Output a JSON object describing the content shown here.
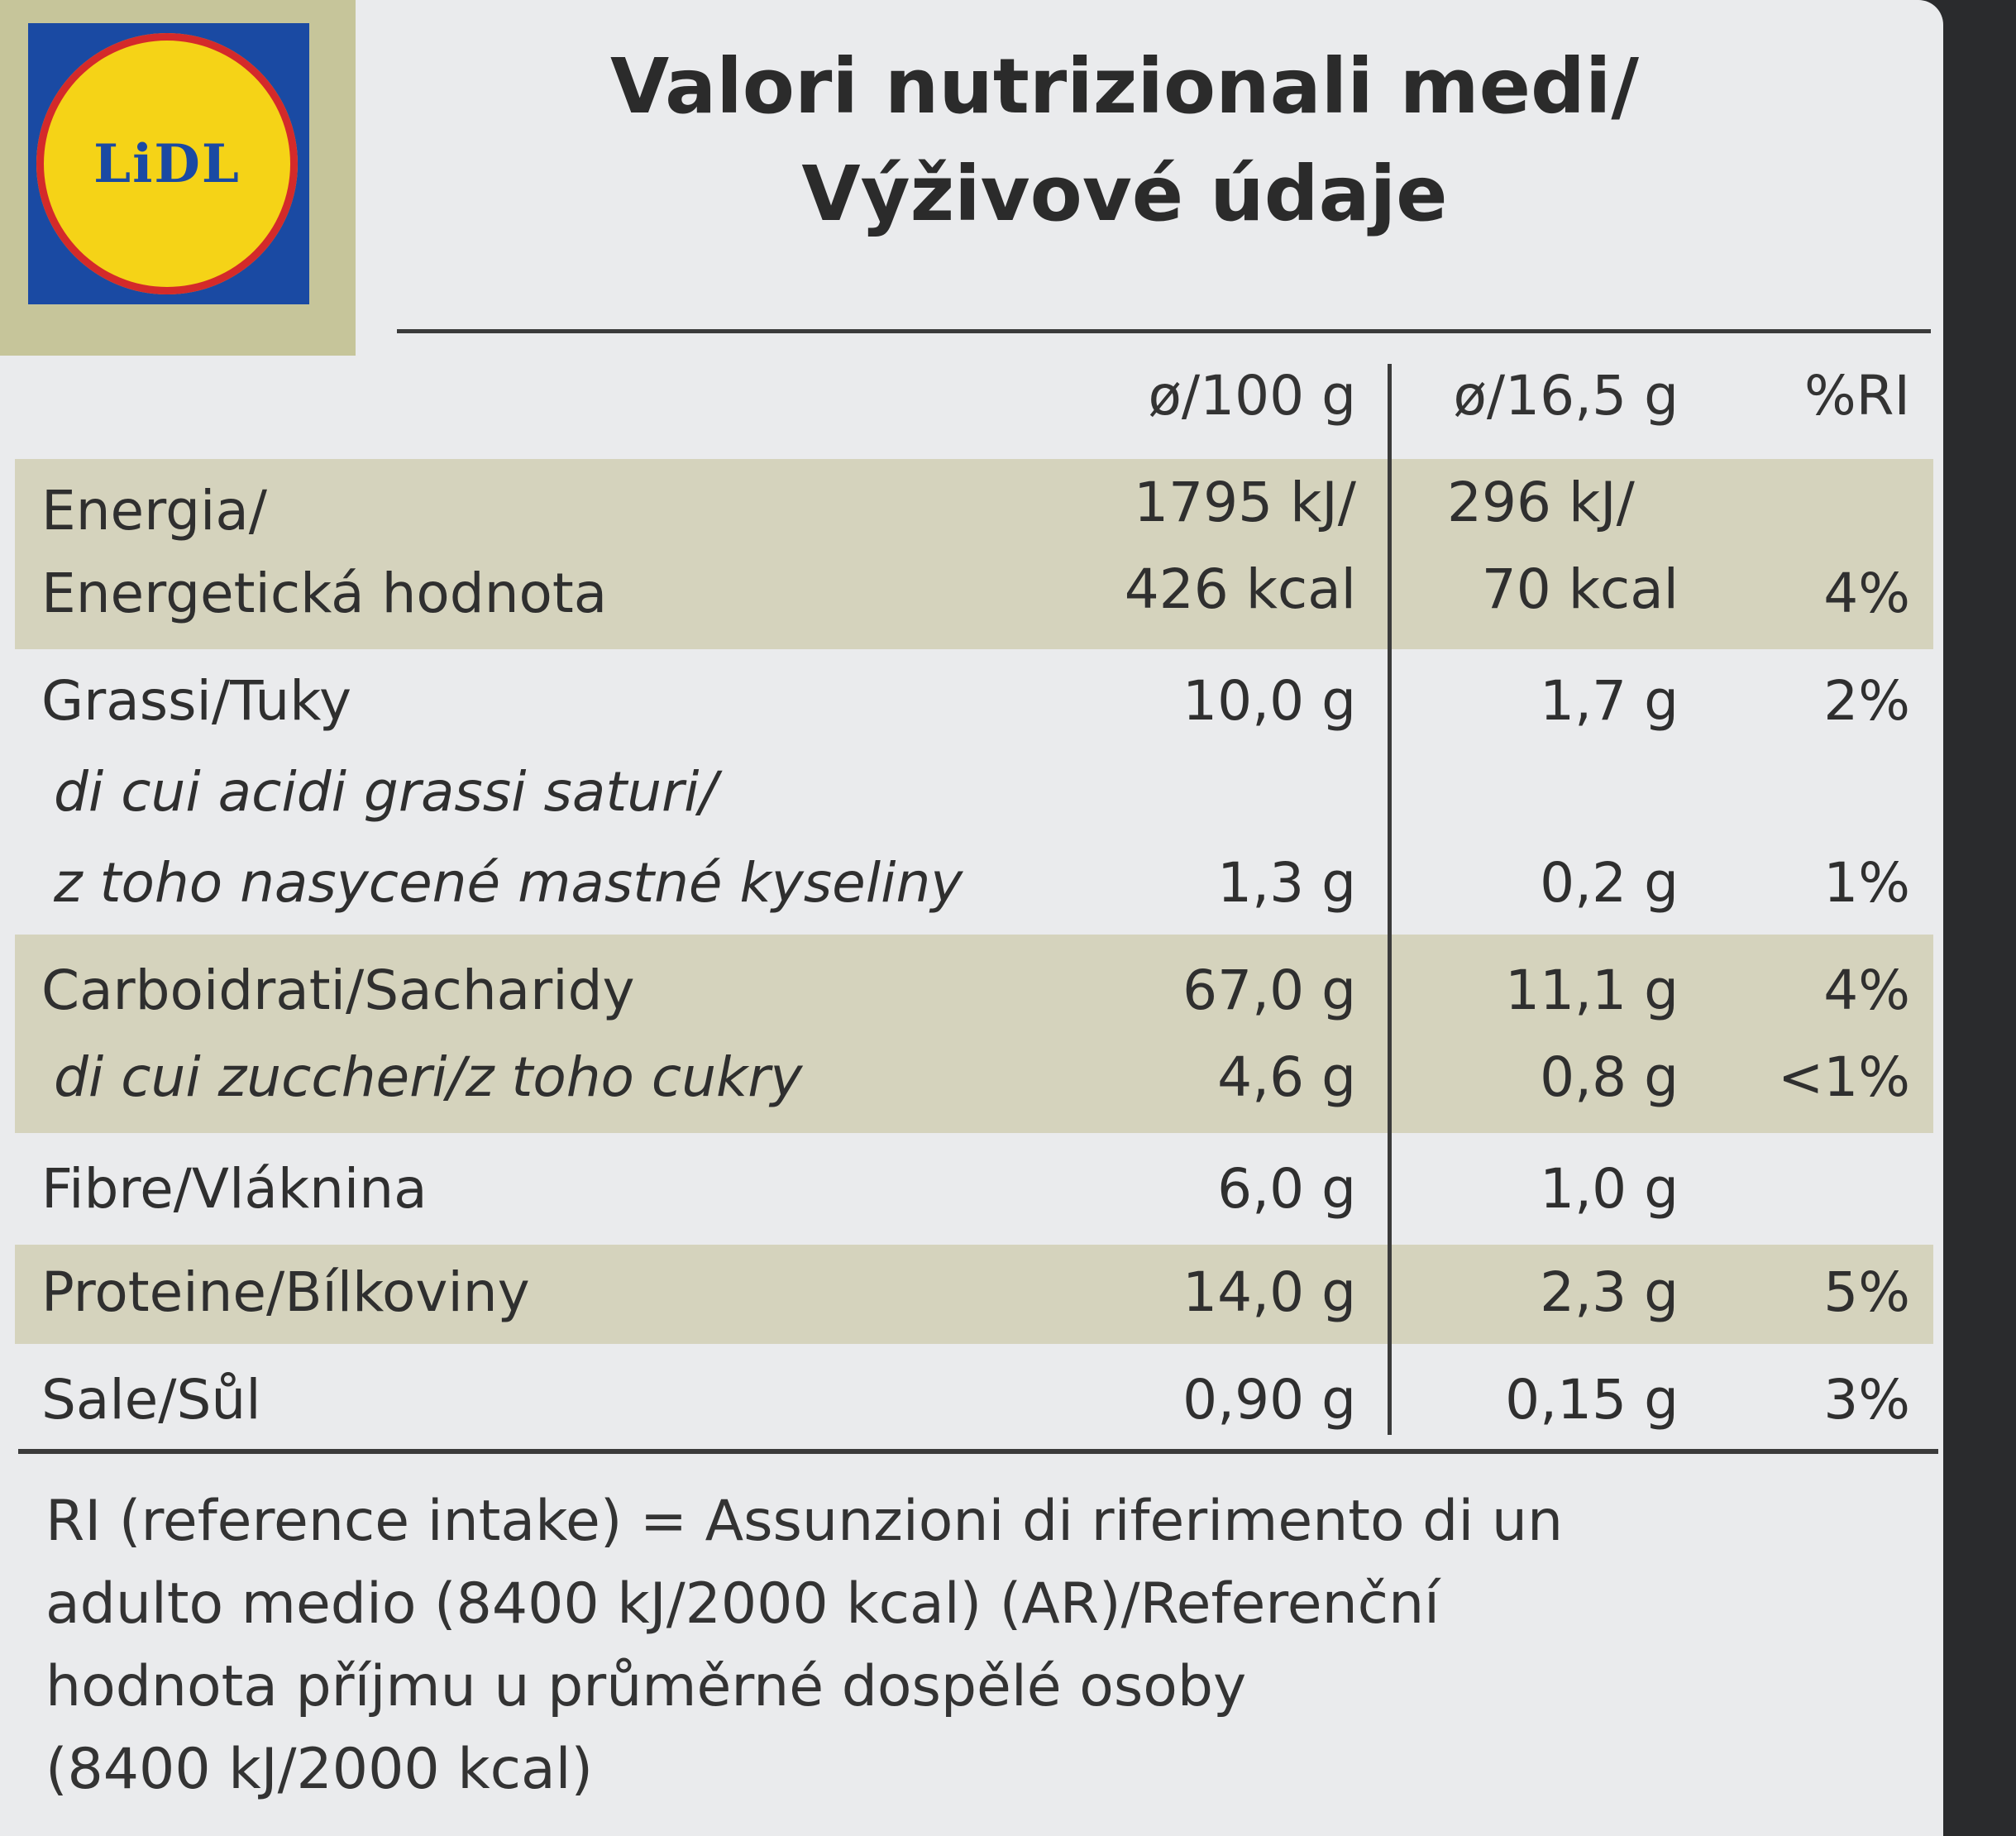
{
  "logo": {
    "text": "LiDL",
    "colors": {
      "blue": "#1a4aa3",
      "yellow": "#f5d317",
      "red": "#d42a2a"
    }
  },
  "title": {
    "line1": "Valori nutrizionali medi/",
    "line2": "Výživové údaje"
  },
  "columns": {
    "per100": "ø/100 g",
    "perServing": "ø/16,5 g",
    "ri": "%RI"
  },
  "rows": [
    {
      "label1": "Energia/",
      "label2": "Energetická hodnota",
      "per100_1": "1795 kJ/",
      "per100_2": "426 kcal",
      "serving_1": "296 kJ/",
      "serving_2": "70 kcal",
      "ri": "4%"
    },
    {
      "label": "Grassi/Tuky",
      "per100": "10,0 g",
      "serving": "1,7 g",
      "ri": "2%"
    },
    {
      "label1": "di cui acidi grassi saturi/",
      "label2": "z toho nasycené mastné kyseliny",
      "per100": "1,3 g",
      "serving": "0,2 g",
      "ri": "1%"
    },
    {
      "label": "Carboidrati/Sacharidy",
      "per100": "67,0 g",
      "serving": "11,1 g",
      "ri": "4%"
    },
    {
      "label": "di cui zuccheri/z toho cukry",
      "per100": "4,6 g",
      "serving": "0,8 g",
      "ri": "<1%"
    },
    {
      "label": "Fibre/Vláknina",
      "per100": "6,0 g",
      "serving": "1,0 g",
      "ri": ""
    },
    {
      "label": "Proteine/Bílkoviny",
      "per100": "14,0 g",
      "serving": "2,3 g",
      "ri": "5%"
    },
    {
      "label": "Sale/Sůl",
      "per100": "0,90 g",
      "serving": "0,15 g",
      "ri": "3%"
    }
  ],
  "footnote": {
    "line1": "RI (reference intake) = Assunzioni di riferimento di un",
    "line2": "adulto medio (8400 kJ/2000 kcal) (AR)/Referenční",
    "line3": "hodnota příjmu u průměrné dospělé osoby",
    "line4": "(8400 kJ/2000 kcal)"
  }
}
